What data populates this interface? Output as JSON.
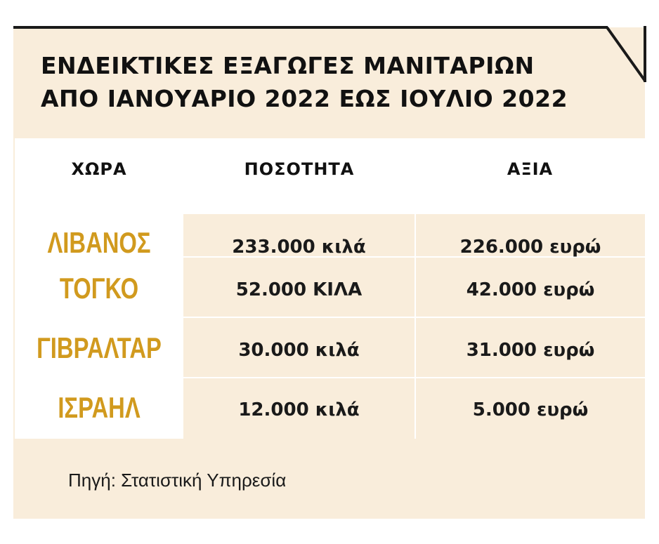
{
  "title_line1": "ΕΝΔΕΙΚΤΙΚΕΣ ΕΞΑΓΩΓΕΣ ΜΑΝΙΤΑΡΙΩΝ",
  "title_line2": "ΑΠΟ ΙΑΝΟΥΑΡΙΟ 2022 ΕΩΣ ΙΟΥΛΙΟ 2022",
  "source": "Πηγή: Στατιστική Υπηρεσία",
  "colors": {
    "background": "#f9eddb",
    "accent": "#d19a1e",
    "text": "#111111"
  },
  "chart_data": {
    "type": "table",
    "columns": [
      "ΧΩΡΑ",
      "ΠΟΣΟΤΗΤΑ",
      "ΑΞΙΑ"
    ],
    "rows": [
      {
        "country": "ΛΙΒΑΝΟΣ",
        "quantity": "233.000 κιλά",
        "value": "226.000 ευρώ"
      },
      {
        "country": "ΤΟΓΚΟ",
        "quantity": "52.000 ΚΙΛΑ",
        "value": "42.000 ευρώ"
      },
      {
        "country": "ΓΙΒΡΑΛΤΑΡ",
        "quantity": "30.000 κιλά",
        "value": "31.000 ευρώ"
      },
      {
        "country": "ΙΣΡΑΗΛ",
        "quantity": "12.000 κιλά",
        "value": "5.000 ευρώ"
      }
    ]
  }
}
